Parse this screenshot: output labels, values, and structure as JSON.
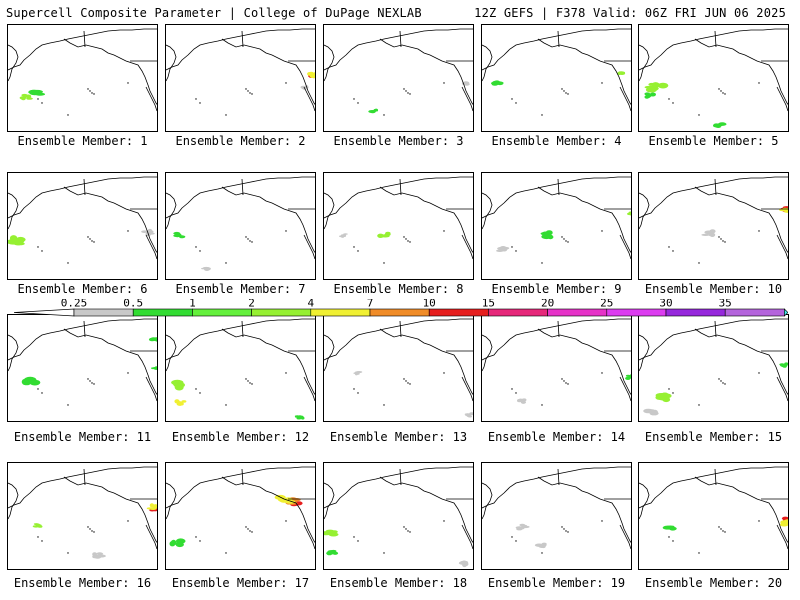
{
  "header": {
    "title": "Supercell Composite Parameter | College of DuPage NEXLAB",
    "run_info": "12Z GEFS | F378 Valid: 06Z FRI JUN 06 2025"
  },
  "colorbar": {
    "labels": [
      "0.25",
      "0.5",
      "1",
      "2",
      "4",
      "7",
      "10",
      "15",
      "20",
      "25",
      "30",
      "35"
    ],
    "colors": [
      "#c8c8c8",
      "#32dc32",
      "#64f03c",
      "#96f032",
      "#f0f032",
      "#f08c28",
      "#e61e1e",
      "#e6287a",
      "#e632c8",
      "#dc3cf0",
      "#9628dc",
      "#b464dc",
      "#46e6e6"
    ]
  },
  "panels": [
    {
      "label": "Ensemble Member: 1"
    },
    {
      "label": "Ensemble Member: 2"
    },
    {
      "label": "Ensemble Member: 3"
    },
    {
      "label": "Ensemble Member: 4"
    },
    {
      "label": "Ensemble Member: 5"
    },
    {
      "label": "Ensemble Member: 6"
    },
    {
      "label": "Ensemble Member: 7"
    },
    {
      "label": "Ensemble Member: 8"
    },
    {
      "label": "Ensemble Member: 9"
    },
    {
      "label": "Ensemble Member: 10"
    },
    {
      "label": "Ensemble Member: 11"
    },
    {
      "label": "Ensemble Member: 12"
    },
    {
      "label": "Ensemble Member: 13"
    },
    {
      "label": "Ensemble Member: 14"
    },
    {
      "label": "Ensemble Member: 15"
    },
    {
      "label": "Ensemble Member: 16"
    },
    {
      "label": "Ensemble Member: 17"
    },
    {
      "label": "Ensemble Member: 18"
    },
    {
      "label": "Ensemble Member: 19"
    },
    {
      "label": "Ensemble Member: 20"
    }
  ]
}
